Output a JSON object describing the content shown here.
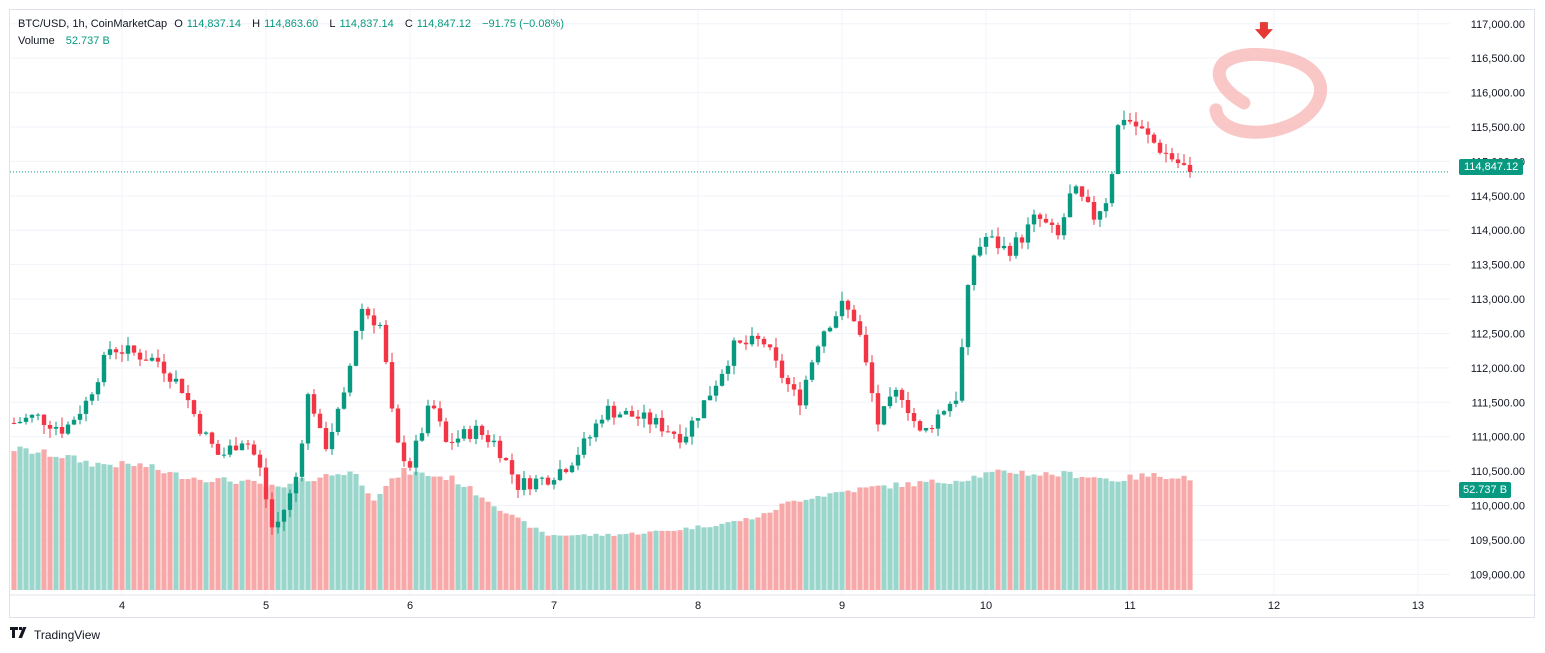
{
  "legend": {
    "symbol": "BTC/USD, 1h, CoinMarketCap",
    "o_label": "O",
    "o_value": "114,837.14",
    "h_label": "H",
    "h_value": "114,863.60",
    "l_label": "L",
    "l_value": "114,837.14",
    "c_label": "C",
    "c_value": "114,847.12",
    "change": "−91.75 (−0.08%)",
    "volume_label": "Volume",
    "volume_value": "52.737 B"
  },
  "price_tag": "114,847.12",
  "volume_tag": "52.737 B",
  "footer": {
    "brand": "TradingView"
  },
  "colors": {
    "up": "#089981",
    "down": "#f23645",
    "up_vol": "#9ad6cb",
    "down_vol": "#f7a9a9",
    "marker": "#e53935",
    "circle": "#f8b4b4"
  },
  "chart_data": {
    "type": "candlestick",
    "title": "BTC/USD, 1h, CoinMarketCap",
    "x_ticks": [
      "4",
      "5",
      "6",
      "7",
      "8",
      "9",
      "10",
      "11",
      "12",
      "13"
    ],
    "y_ticks": [
      "117,000.00",
      "116,500.00",
      "116,000.00",
      "115,500.00",
      "115,000.00",
      "114,500.00",
      "114,000.00",
      "113,500.00",
      "113,000.00",
      "112,500.00",
      "112,000.00",
      "111,500.00",
      "111,000.00",
      "110,500.00",
      "110,000.00",
      "109,500.00",
      "109,000.00"
    ],
    "ylim": [
      108700,
      117200
    ],
    "last_price": 114847.12,
    "x_start_day": 3.25,
    "bars_per_day": 24,
    "close_anchors": [
      [
        3.25,
        111200
      ],
      [
        3.4,
        111300
      ],
      [
        3.6,
        111100
      ],
      [
        3.75,
        111500
      ],
      [
        3.92,
        112300
      ],
      [
        4.1,
        112200
      ],
      [
        4.25,
        112100
      ],
      [
        4.42,
        111700
      ],
      [
        4.55,
        111100
      ],
      [
        4.68,
        110700
      ],
      [
        4.85,
        111000
      ],
      [
        4.95,
        110600
      ],
      [
        5.05,
        109600
      ],
      [
        5.2,
        110300
      ],
      [
        5.3,
        111700
      ],
      [
        5.4,
        110800
      ],
      [
        5.55,
        111600
      ],
      [
        5.65,
        112900
      ],
      [
        5.8,
        112600
      ],
      [
        5.9,
        110900
      ],
      [
        6.0,
        110600
      ],
      [
        6.15,
        111500
      ],
      [
        6.25,
        110900
      ],
      [
        6.45,
        111100
      ],
      [
        6.6,
        110900
      ],
      [
        6.75,
        110300
      ],
      [
        6.95,
        110400
      ],
      [
        7.1,
        110600
      ],
      [
        7.25,
        111000
      ],
      [
        7.35,
        111400
      ],
      [
        7.55,
        111300
      ],
      [
        7.7,
        111200
      ],
      [
        7.9,
        111000
      ],
      [
        8.1,
        111700
      ],
      [
        8.25,
        112300
      ],
      [
        8.45,
        112400
      ],
      [
        8.55,
        112000
      ],
      [
        8.7,
        111500
      ],
      [
        8.85,
        112500
      ],
      [
        9.0,
        112900
      ],
      [
        9.1,
        112700
      ],
      [
        9.25,
        111200
      ],
      [
        9.4,
        111700
      ],
      [
        9.55,
        111000
      ],
      [
        9.7,
        111400
      ],
      [
        9.8,
        111600
      ],
      [
        9.9,
        113600
      ],
      [
        10.0,
        113900
      ],
      [
        10.15,
        113700
      ],
      [
        10.25,
        113900
      ],
      [
        10.35,
        114200
      ],
      [
        10.5,
        113900
      ],
      [
        10.6,
        114600
      ],
      [
        10.75,
        114200
      ],
      [
        10.85,
        114500
      ],
      [
        10.93,
        115700
      ],
      [
        11.05,
        115500
      ],
      [
        11.2,
        115200
      ],
      [
        11.32,
        115000
      ],
      [
        11.42,
        114850
      ]
    ],
    "volume_profile": [
      [
        3.25,
        0.95
      ],
      [
        3.6,
        0.9
      ],
      [
        3.8,
        0.85
      ],
      [
        4.15,
        0.84
      ],
      [
        4.35,
        0.78
      ],
      [
        4.55,
        0.75
      ],
      [
        4.85,
        0.73
      ],
      [
        5.1,
        0.68
      ],
      [
        5.3,
        0.75
      ],
      [
        5.6,
        0.8
      ],
      [
        5.75,
        0.62
      ],
      [
        5.95,
        0.8
      ],
      [
        6.3,
        0.75
      ],
      [
        6.55,
        0.6
      ],
      [
        6.7,
        0.5
      ],
      [
        6.95,
        0.37
      ],
      [
        7.3,
        0.37
      ],
      [
        7.55,
        0.38
      ],
      [
        7.8,
        0.4
      ],
      [
        8.2,
        0.45
      ],
      [
        8.45,
        0.5
      ],
      [
        8.6,
        0.58
      ],
      [
        8.75,
        0.62
      ],
      [
        9.05,
        0.67
      ],
      [
        9.3,
        0.7
      ],
      [
        9.55,
        0.72
      ],
      [
        9.8,
        0.74
      ],
      [
        10.0,
        0.78
      ],
      [
        10.2,
        0.8
      ],
      [
        10.35,
        0.78
      ],
      [
        10.6,
        0.78
      ],
      [
        10.9,
        0.74
      ],
      [
        11.1,
        0.77
      ],
      [
        11.25,
        0.77
      ],
      [
        11.42,
        0.76
      ]
    ]
  }
}
